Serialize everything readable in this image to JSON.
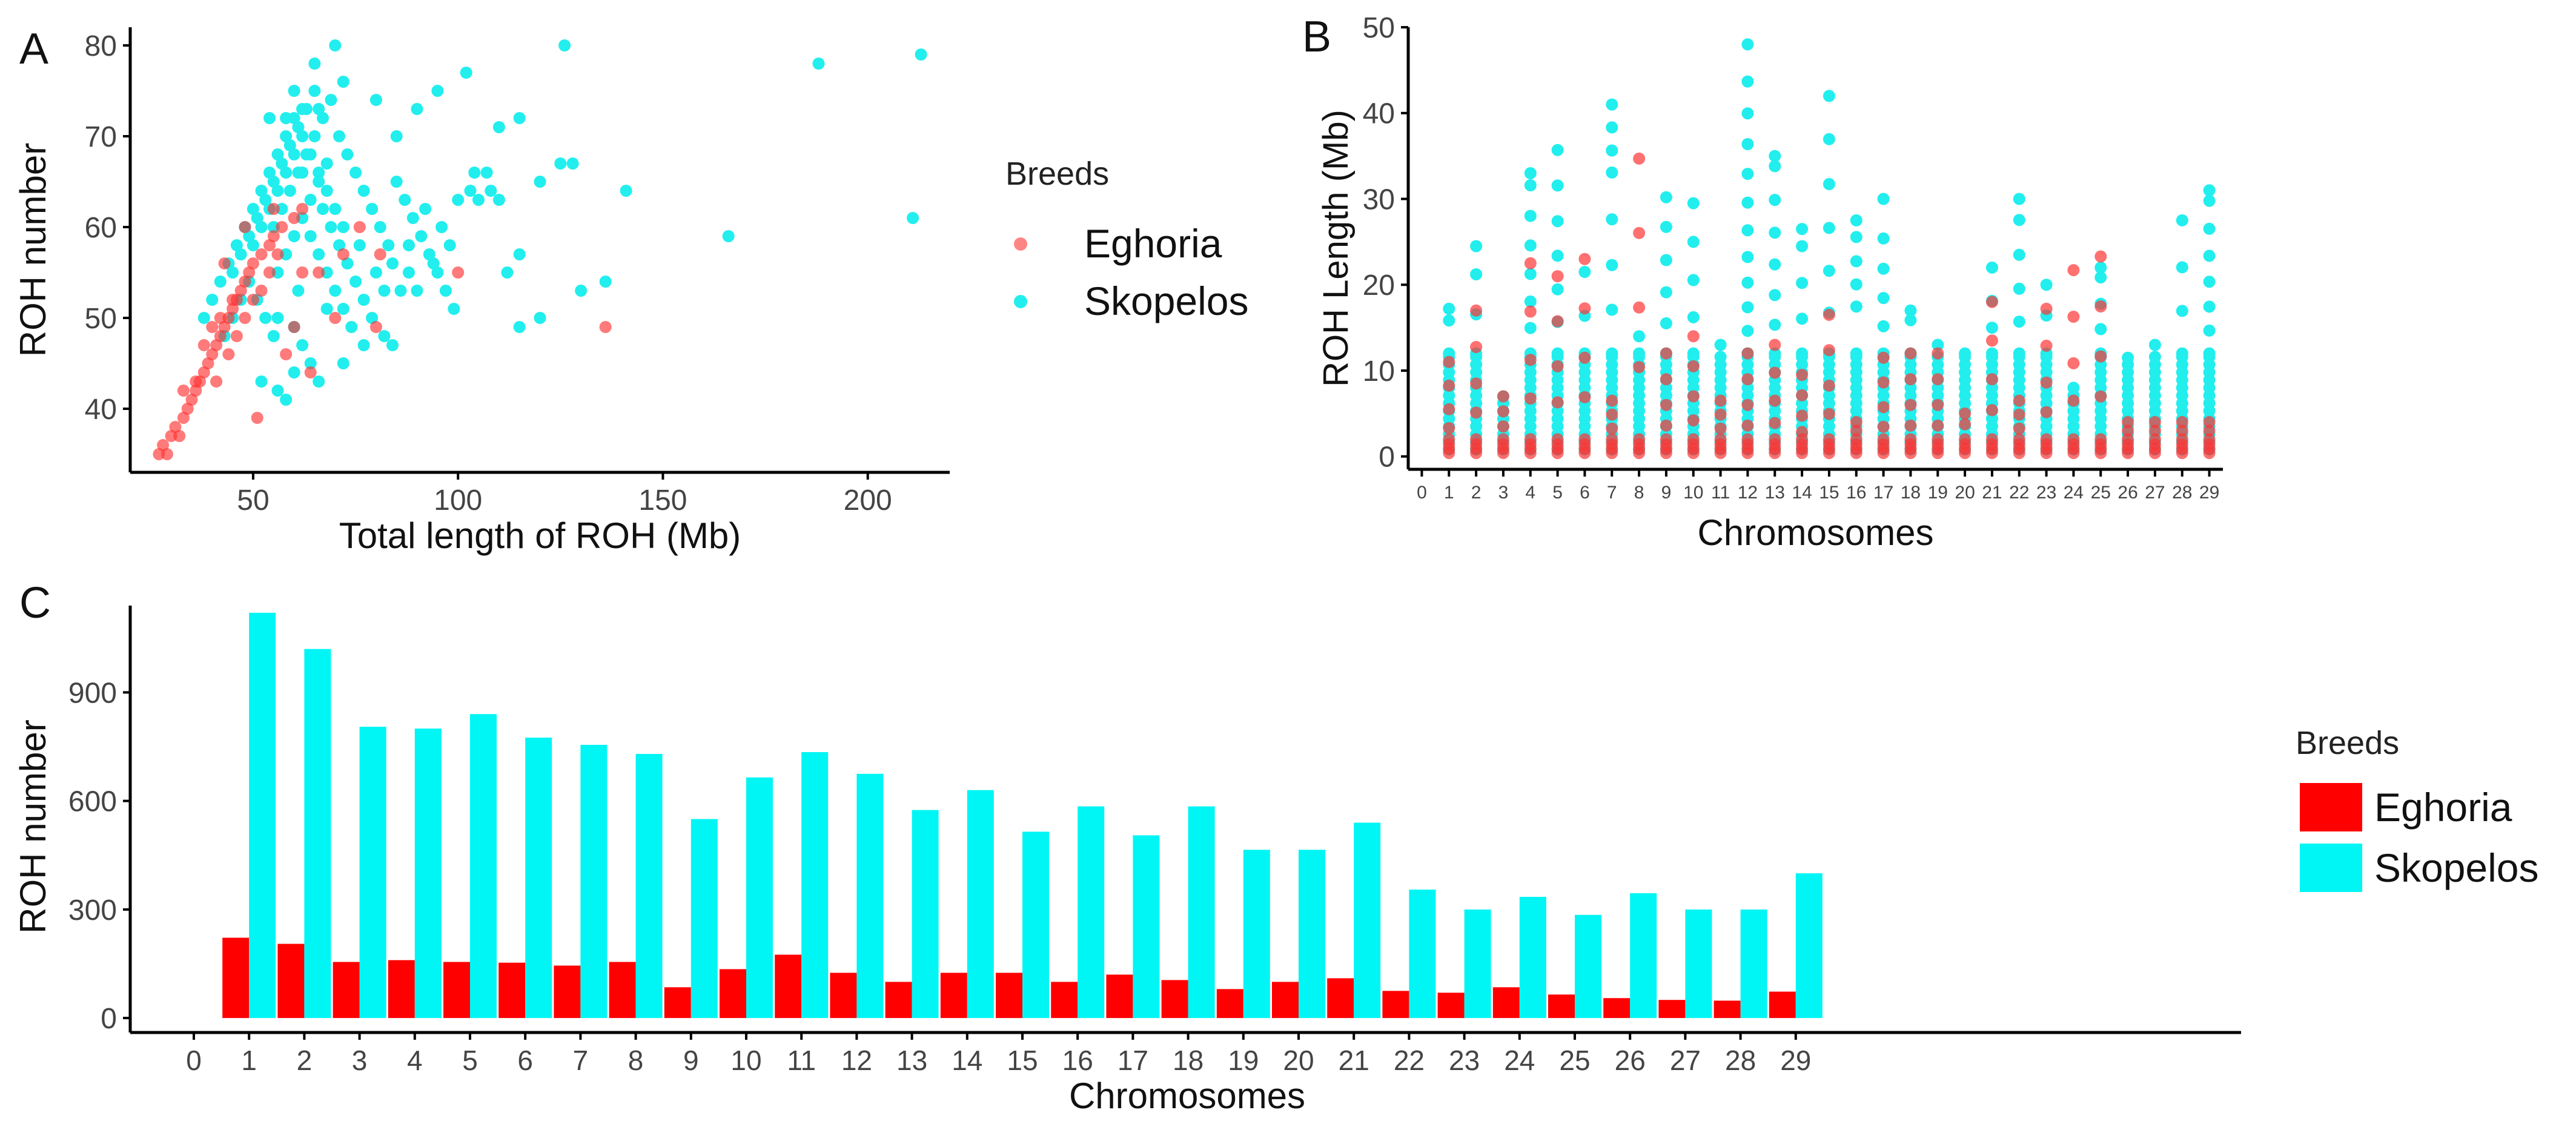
{
  "colors": {
    "eghoria": "#ff3333",
    "skopelos": "#22eeee",
    "bar_eghoria": "#ff0000",
    "bar_skopelos": "#00f5f5"
  },
  "legend": {
    "title": "Breeds",
    "labels": [
      "Eghoria",
      "Skopelos"
    ]
  },
  "chart_data": [
    {
      "panel": "A",
      "type": "scatter",
      "title": "",
      "xlabel": "Total length of ROH (Mb)",
      "ylabel": "ROH number",
      "xlim": [
        20,
        220
      ],
      "ylim": [
        33,
        82
      ],
      "xticks": [
        50,
        100,
        150,
        200
      ],
      "yticks": [
        40,
        50,
        60,
        70,
        80
      ],
      "legend_position": "right",
      "series": [
        {
          "name": "Eghoria",
          "points": [
            [
              27,
              35
            ],
            [
              28,
              36
            ],
            [
              29,
              35
            ],
            [
              30,
              37
            ],
            [
              31,
              38
            ],
            [
              32,
              37
            ],
            [
              33,
              39
            ],
            [
              34,
              40
            ],
            [
              35,
              41
            ],
            [
              36,
              42
            ],
            [
              37,
              43
            ],
            [
              38,
              44
            ],
            [
              39,
              45
            ],
            [
              40,
              46
            ],
            [
              41,
              47
            ],
            [
              42,
              48
            ],
            [
              43,
              49
            ],
            [
              44,
              50
            ],
            [
              45,
              51
            ],
            [
              46,
              52
            ],
            [
              47,
              53
            ],
            [
              48,
              54
            ],
            [
              49,
              55
            ],
            [
              50,
              56
            ],
            [
              52,
              57
            ],
            [
              54,
              58
            ],
            [
              55,
              59
            ],
            [
              57,
              60
            ],
            [
              60,
              61
            ],
            [
              62,
              62
            ],
            [
              38,
              47
            ],
            [
              40,
              49
            ],
            [
              42,
              50
            ],
            [
              44,
              46
            ],
            [
              46,
              48
            ],
            [
              48,
              50
            ],
            [
              50,
              52
            ],
            [
              52,
              53
            ],
            [
              54,
              55
            ],
            [
              56,
              57
            ],
            [
              58,
              46
            ],
            [
              60,
              49
            ],
            [
              64,
              44
            ],
            [
              66,
              55
            ],
            [
              70,
              50
            ],
            [
              72,
              57
            ],
            [
              76,
              60
            ],
            [
              80,
              49
            ],
            [
              81,
              57
            ],
            [
              100,
              55
            ],
            [
              136,
              49
            ],
            [
              51,
              39
            ],
            [
              43,
              56
            ],
            [
              45,
              52
            ],
            [
              41,
              43
            ],
            [
              36,
              43
            ],
            [
              33,
              42
            ],
            [
              48,
              60
            ],
            [
              55,
              62
            ],
            [
              62,
              55
            ]
          ]
        },
        {
          "name": "Skopelos",
          "points": [
            [
              70,
              80
            ],
            [
              65,
              78
            ],
            [
              60,
              75
            ],
            [
              72,
              76
            ],
            [
              80,
              74
            ],
            [
              85,
              70
            ],
            [
              90,
              73
            ],
            [
              95,
              75
            ],
            [
              102,
              77
            ],
            [
              110,
              71
            ],
            [
              115,
              72
            ],
            [
              120,
              65
            ],
            [
              125,
              67
            ],
            [
              128,
              67
            ],
            [
              126,
              80
            ],
            [
              141,
              64
            ],
            [
              136,
              54
            ],
            [
              130,
              53
            ],
            [
              115,
              57
            ],
            [
              112,
              55
            ],
            [
              166,
              59
            ],
            [
              188,
              78
            ],
            [
              211,
              61
            ],
            [
              213,
              79
            ],
            [
              100,
              63
            ],
            [
              104,
              66
            ],
            [
              108,
              64
            ],
            [
              96,
              60
            ],
            [
              92,
              62
            ],
            [
              88,
              58
            ],
            [
              84,
              56
            ],
            [
              80,
              55
            ],
            [
              76,
              58
            ],
            [
              72,
              60
            ],
            [
              70,
              62
            ],
            [
              68,
              64
            ],
            [
              66,
              66
            ],
            [
              64,
              68
            ],
            [
              62,
              70
            ],
            [
              60,
              72
            ],
            [
              58,
              70
            ],
            [
              56,
              68
            ],
            [
              54,
              66
            ],
            [
              52,
              64
            ],
            [
              50,
              62
            ],
            [
              48,
              60
            ],
            [
              46,
              58
            ],
            [
              44,
              56
            ],
            [
              42,
              54
            ],
            [
              40,
              52
            ],
            [
              38,
              50
            ],
            [
              55,
              60
            ],
            [
              57,
              62
            ],
            [
              59,
              64
            ],
            [
              61,
              66
            ],
            [
              63,
              68
            ],
            [
              65,
              70
            ],
            [
              67,
              72
            ],
            [
              69,
              74
            ],
            [
              71,
              70
            ],
            [
              73,
              68
            ],
            [
              75,
              66
            ],
            [
              77,
              64
            ],
            [
              79,
              62
            ],
            [
              81,
              60
            ],
            [
              83,
              58
            ],
            [
              85,
              65
            ],
            [
              87,
              63
            ],
            [
              89,
              61
            ],
            [
              91,
              59
            ],
            [
              93,
              57
            ],
            [
              95,
              55
            ],
            [
              97,
              53
            ],
            [
              99,
              51
            ],
            [
              56,
              55
            ],
            [
              58,
              57
            ],
            [
              60,
              59
            ],
            [
              62,
              61
            ],
            [
              64,
              63
            ],
            [
              66,
              65
            ],
            [
              68,
              67
            ],
            [
              50,
              58
            ],
            [
              52,
              60
            ],
            [
              54,
              62
            ],
            [
              56,
              64
            ],
            [
              58,
              66
            ],
            [
              60,
              68
            ],
            [
              62,
              66
            ],
            [
              64,
              59
            ],
            [
              66,
              57
            ],
            [
              68,
              55
            ],
            [
              70,
              53
            ],
            [
              72,
              51
            ],
            [
              74,
              49
            ],
            [
              60,
              49
            ],
            [
              62,
              47
            ],
            [
              64,
              45
            ],
            [
              66,
              43
            ],
            [
              58,
              41
            ],
            [
              52,
              43
            ],
            [
              56,
              42
            ],
            [
              45,
              55
            ],
            [
              47,
              57
            ],
            [
              49,
              59
            ],
            [
              51,
              61
            ],
            [
              53,
              63
            ],
            [
              55,
              65
            ],
            [
              57,
              67
            ],
            [
              59,
              69
            ],
            [
              61,
              71
            ],
            [
              63,
              73
            ],
            [
              65,
              75
            ],
            [
              67,
              62
            ],
            [
              69,
              60
            ],
            [
              71,
              58
            ],
            [
              73,
              56
            ],
            [
              75,
              54
            ],
            [
              77,
              52
            ],
            [
              79,
              50
            ],
            [
              82,
              48
            ],
            [
              84,
              47
            ],
            [
              86,
              53
            ],
            [
              88,
              55
            ],
            [
              90,
              53
            ],
            [
              72,
              45
            ],
            [
              60,
              44
            ],
            [
              55,
              48
            ],
            [
              53,
              50
            ],
            [
              51,
              52
            ],
            [
              49,
              54
            ],
            [
              47,
              52
            ],
            [
              45,
              50
            ],
            [
              43,
              48
            ],
            [
              105,
              63
            ],
            [
              110,
              63
            ],
            [
              107,
              66
            ],
            [
              103,
              64
            ],
            [
              98,
              58
            ],
            [
              94,
              56
            ],
            [
              115,
              49
            ],
            [
              120,
              50
            ],
            [
              54,
              72
            ],
            [
              58,
              72
            ],
            [
              62,
              73
            ],
            [
              66,
              73
            ],
            [
              56,
              50
            ],
            [
              61,
              53
            ],
            [
              68,
              51
            ],
            [
              77,
              47
            ],
            [
              82,
              53
            ]
          ]
        }
      ]
    },
    {
      "panel": "B",
      "type": "scatter",
      "title": "",
      "xlabel": "Chromosomes",
      "ylabel": "ROH Length (Mb)",
      "xlim": [
        -0.5,
        29.5
      ],
      "ylim": [
        -1.5,
        50
      ],
      "xticks": [
        "0",
        "1",
        "2",
        "3",
        "4",
        "5",
        "6",
        "7",
        "8",
        "9",
        "10",
        "11",
        "12",
        "13",
        "14",
        "15",
        "16",
        "17",
        "18",
        "19",
        "20",
        "21",
        "22",
        "23",
        "24",
        "25",
        "26",
        "27",
        "28",
        "29"
      ],
      "yticks": [
        0,
        10,
        20,
        30,
        40,
        50
      ],
      "max_skopelos": [
        17.2,
        24.5,
        7,
        33,
        35.7,
        21.5,
        41,
        14,
        30.2,
        29.5,
        13,
        48,
        35,
        26.5,
        42,
        27.5,
        30,
        17,
        13,
        12,
        22,
        30,
        20,
        8,
        22,
        11.5,
        13,
        27.5,
        31
      ],
      "max_eghoria": [
        11,
        17,
        7,
        22.5,
        21,
        23,
        6.5,
        34.7,
        12,
        14,
        6.5,
        12,
        13,
        9.5,
        16.5,
        4,
        11.5,
        12,
        12,
        5,
        18,
        6.5,
        17.2,
        21.7,
        23.3,
        4,
        4,
        4,
        4
      ]
    },
    {
      "panel": "C",
      "type": "bar",
      "title": "",
      "xlabel": "Chromosomes",
      "ylabel": "ROH number",
      "categories": [
        "0",
        "1",
        "2",
        "3",
        "4",
        "5",
        "6",
        "7",
        "8",
        "9",
        "10",
        "11",
        "12",
        "13",
        "14",
        "15",
        "16",
        "17",
        "18",
        "19",
        "20",
        "21",
        "22",
        "23",
        "24",
        "25",
        "26",
        "27",
        "28",
        "29"
      ],
      "ylim": [
        -40,
        1140
      ],
      "yticks": [
        0,
        300,
        600,
        900
      ],
      "legend_position": "right",
      "series": [
        {
          "name": "Eghoria",
          "values": [
            null,
            222,
            205,
            155,
            160,
            155,
            153,
            145,
            155,
            85,
            135,
            175,
            125,
            100,
            125,
            125,
            100,
            120,
            105,
            80,
            100,
            110,
            75,
            70,
            85,
            65,
            55,
            50,
            48,
            73
          ]
        },
        {
          "name": "Skopelos",
          "values": [
            null,
            1120,
            1020,
            805,
            800,
            840,
            775,
            755,
            730,
            550,
            665,
            735,
            675,
            575,
            630,
            515,
            585,
            505,
            585,
            465,
            465,
            540,
            355,
            300,
            335,
            285,
            345,
            300,
            300,
            400
          ]
        }
      ]
    }
  ]
}
